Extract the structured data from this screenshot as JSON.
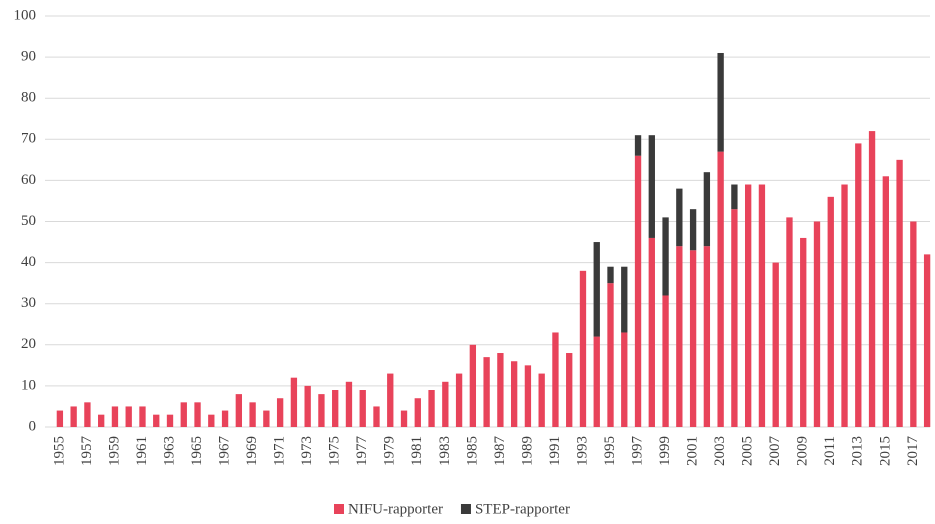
{
  "chart_data": {
    "type": "bar",
    "stacked": true,
    "categories": [
      "1955",
      null,
      "1957",
      null,
      "1959",
      null,
      "1961",
      null,
      "1963",
      null,
      "1965",
      null,
      "1967",
      null,
      "1969",
      null,
      "1971",
      null,
      "1973",
      null,
      "1975",
      null,
      "1977",
      null,
      "1979",
      null,
      "1981",
      null,
      "1983",
      null,
      "1985",
      null,
      "1987",
      null,
      "1989",
      null,
      "1991",
      null,
      "1993",
      null,
      "1995",
      null,
      "1997",
      null,
      "1999",
      null,
      "2001",
      null,
      "2003",
      null,
      "2005",
      null,
      "2007",
      null,
      "2009",
      null,
      "2011",
      null,
      "2013",
      null,
      "2015",
      null,
      "2017",
      null
    ],
    "series": [
      {
        "name": "NIFU-rapporter",
        "color": "#e8435a",
        "values": [
          4,
          5,
          6,
          3,
          5,
          5,
          5,
          3,
          3,
          6,
          6,
          3,
          4,
          8,
          6,
          4,
          7,
          12,
          10,
          8,
          9,
          11,
          9,
          5,
          13,
          4,
          7,
          9,
          11,
          13,
          20,
          17,
          18,
          16,
          15,
          13,
          23,
          18,
          38,
          22,
          35,
          23,
          66,
          46,
          32,
          44,
          43,
          44,
          67,
          53,
          59,
          59,
          40,
          51,
          46,
          50,
          56,
          59,
          69,
          72,
          61,
          65,
          50,
          42
        ]
      },
      {
        "name": "STEP-rapporter",
        "color": "#3a3a3a",
        "values": [
          null,
          null,
          null,
          null,
          null,
          null,
          null,
          null,
          null,
          null,
          null,
          null,
          null,
          null,
          null,
          null,
          null,
          null,
          null,
          null,
          null,
          null,
          null,
          null,
          null,
          null,
          null,
          null,
          null,
          null,
          null,
          null,
          null,
          null,
          null,
          null,
          null,
          null,
          null,
          23,
          4,
          16,
          5,
          25,
          19,
          14,
          10,
          18,
          24,
          6,
          null,
          null,
          null,
          null,
          null,
          null,
          null,
          null,
          null,
          null,
          null,
          null,
          null,
          null
        ]
      }
    ],
    "ylim": [
      0,
      100
    ],
    "yticks": [
      0,
      10,
      20,
      30,
      40,
      50,
      60,
      70,
      80,
      90,
      100
    ],
    "grid": true,
    "legend": "bottom"
  }
}
